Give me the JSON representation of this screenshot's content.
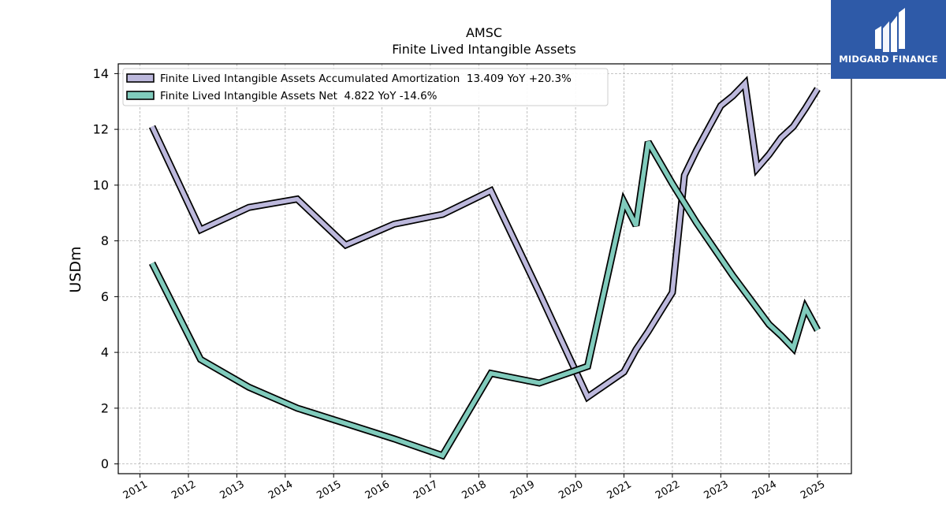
{
  "brand": {
    "name": "MIDGARD FINANCE",
    "background": "#2e5aa8"
  },
  "chart_data": {
    "type": "line",
    "title": "AMSC",
    "subtitle": "Finite Lived Intangible Assets",
    "xlabel": "",
    "ylabel": "USDm",
    "xlim": [
      2010.55,
      2025.7
    ],
    "ylim": [
      -0.35,
      14.35
    ],
    "x_ticks": [
      2011,
      2012,
      2013,
      2014,
      2015,
      2016,
      2017,
      2018,
      2019,
      2020,
      2021,
      2022,
      2023,
      2024,
      2025
    ],
    "y_ticks": [
      0,
      2,
      4,
      6,
      8,
      10,
      12,
      14
    ],
    "grid": true,
    "legend_position": "top-left",
    "series": [
      {
        "name": "Finite Lived Intangible Assets Accumulated Amortization  13.409 YoY +20.3%",
        "color": "#bcb8dc",
        "x": [
          2011.25,
          2012.25,
          2013.25,
          2014.25,
          2015.25,
          2016.25,
          2017.25,
          2018.25,
          2019.25,
          2020.25,
          2021.0,
          2021.25,
          2021.5,
          2021.75,
          2022.0,
          2022.25,
          2022.5,
          2022.75,
          2023.0,
          2023.25,
          2023.5,
          2023.75,
          2024.0,
          2024.25,
          2024.5,
          2024.75,
          2025.0
        ],
        "y": [
          12.1,
          8.4,
          9.2,
          9.5,
          7.85,
          8.6,
          8.95,
          9.8,
          6.15,
          2.4,
          3.3,
          4.1,
          4.75,
          5.45,
          6.15,
          10.35,
          11.25,
          12.05,
          12.85,
          13.2,
          13.65,
          10.6,
          11.1,
          11.7,
          12.1,
          12.75,
          13.45
        ]
      },
      {
        "name": "Finite Lived Intangible Assets Net  4.822 YoY -14.6%",
        "color": "#80cbbc",
        "x": [
          2011.25,
          2012.25,
          2013.25,
          2014.25,
          2015.25,
          2016.25,
          2017.25,
          2018.25,
          2019.25,
          2020.25,
          2021.0,
          2021.25,
          2021.5,
          2022.0,
          2022.5,
          2023.25,
          2024.0,
          2024.25,
          2024.5,
          2024.75,
          2025.0
        ],
        "y": [
          7.2,
          3.75,
          2.75,
          2.0,
          1.45,
          0.9,
          0.3,
          3.25,
          2.9,
          3.5,
          9.4,
          8.55,
          11.55,
          10.05,
          8.65,
          6.75,
          5.0,
          4.6,
          4.15,
          5.6,
          4.8
        ]
      }
    ]
  }
}
